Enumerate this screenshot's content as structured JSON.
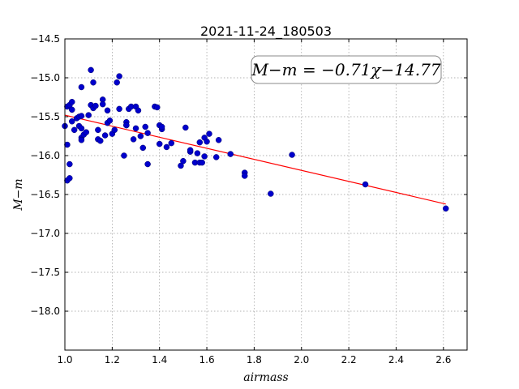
{
  "chart_data": {
    "type": "scatter",
    "title": "2021-11-24_180503",
    "xlabel": "airmass",
    "ylabel": "M−m",
    "xlim": [
      1.0,
      2.7
    ],
    "ylim": [
      -14.5,
      -18.5
    ],
    "y_inverted": true,
    "grid": true,
    "x_ticks": [
      "1.0",
      "1.2",
      "1.4",
      "1.6",
      "1.8",
      "2.0",
      "2.2",
      "2.4",
      "2.6"
    ],
    "x_tick_values": [
      1.0,
      1.2,
      1.4,
      1.6,
      1.8,
      2.0,
      2.2,
      2.4,
      2.6
    ],
    "y_ticks": [
      "−14.5",
      "−15.0",
      "−15.5",
      "−16.0",
      "−16.5",
      "−17.0",
      "−17.5",
      "−18.0"
    ],
    "y_tick_values": [
      -14.5,
      -15.0,
      -15.5,
      -16.0,
      -16.5,
      -17.0,
      -17.5,
      -18.0
    ],
    "annotation": "M−m = −0.71χ−14.77",
    "fit": {
      "slope": -0.71,
      "intercept": -14.77,
      "x_range": [
        1.0,
        2.61
      ],
      "color": "#ff0000"
    },
    "series": [
      {
        "color": "#0000cc",
        "points": [
          [
            1.0,
            -15.62
          ],
          [
            1.01,
            -15.86
          ],
          [
            1.01,
            -16.32
          ],
          [
            1.01,
            -15.37
          ],
          [
            1.02,
            -16.11
          ],
          [
            1.02,
            -16.29
          ],
          [
            1.02,
            -15.35
          ],
          [
            1.03,
            -15.41
          ],
          [
            1.03,
            -15.56
          ],
          [
            1.03,
            -15.31
          ],
          [
            1.04,
            -15.67
          ],
          [
            1.05,
            -15.52
          ],
          [
            1.06,
            -15.5
          ],
          [
            1.06,
            -15.62
          ],
          [
            1.07,
            -15.65
          ],
          [
            1.07,
            -15.77
          ],
          [
            1.07,
            -15.8
          ],
          [
            1.07,
            -15.12
          ],
          [
            1.07,
            -15.49
          ],
          [
            1.08,
            -15.73
          ],
          [
            1.09,
            -15.7
          ],
          [
            1.1,
            -15.48
          ],
          [
            1.11,
            -14.9
          ],
          [
            1.11,
            -15.35
          ],
          [
            1.12,
            -15.39
          ],
          [
            1.12,
            -15.06
          ],
          [
            1.13,
            -15.36
          ],
          [
            1.14,
            -15.67
          ],
          [
            1.14,
            -15.79
          ],
          [
            1.15,
            -15.81
          ],
          [
            1.16,
            -15.28
          ],
          [
            1.16,
            -15.34
          ],
          [
            1.17,
            -15.74
          ],
          [
            1.18,
            -15.42
          ],
          [
            1.18,
            -15.58
          ],
          [
            1.19,
            -15.55
          ],
          [
            1.2,
            -15.72
          ],
          [
            1.21,
            -15.67
          ],
          [
            1.22,
            -15.06
          ],
          [
            1.23,
            -14.98
          ],
          [
            1.23,
            -15.4
          ],
          [
            1.25,
            -16.0
          ],
          [
            1.26,
            -15.57
          ],
          [
            1.26,
            -15.61
          ],
          [
            1.26,
            -15.61
          ],
          [
            1.27,
            -15.4
          ],
          [
            1.28,
            -15.37
          ],
          [
            1.29,
            -15.79
          ],
          [
            1.3,
            -15.37
          ],
          [
            1.3,
            -15.65
          ],
          [
            1.31,
            -15.42
          ],
          [
            1.32,
            -15.75
          ],
          [
            1.33,
            -15.9
          ],
          [
            1.34,
            -15.63
          ],
          [
            1.35,
            -16.11
          ],
          [
            1.35,
            -15.71
          ],
          [
            1.38,
            -15.37
          ],
          [
            1.39,
            -15.38
          ],
          [
            1.4,
            -15.61
          ],
          [
            1.4,
            -15.85
          ],
          [
            1.41,
            -15.66
          ],
          [
            1.41,
            -15.63
          ],
          [
            1.43,
            -15.89
          ],
          [
            1.45,
            -15.84
          ],
          [
            1.49,
            -16.13
          ],
          [
            1.5,
            -16.07
          ],
          [
            1.51,
            -15.64
          ],
          [
            1.53,
            -15.95
          ],
          [
            1.53,
            -15.93
          ],
          [
            1.55,
            -16.09
          ],
          [
            1.56,
            -15.97
          ],
          [
            1.57,
            -16.09
          ],
          [
            1.57,
            -15.83
          ],
          [
            1.58,
            -16.09
          ],
          [
            1.59,
            -15.77
          ],
          [
            1.59,
            -16.01
          ],
          [
            1.6,
            -15.82
          ],
          [
            1.61,
            -15.72
          ],
          [
            1.64,
            -16.02
          ],
          [
            1.65,
            -15.8
          ],
          [
            1.7,
            -15.98
          ],
          [
            1.76,
            -16.22
          ],
          [
            1.76,
            -16.26
          ],
          [
            1.87,
            -16.49
          ],
          [
            1.96,
            -15.99
          ],
          [
            2.27,
            -16.37
          ],
          [
            2.61,
            -16.68
          ]
        ]
      }
    ]
  }
}
